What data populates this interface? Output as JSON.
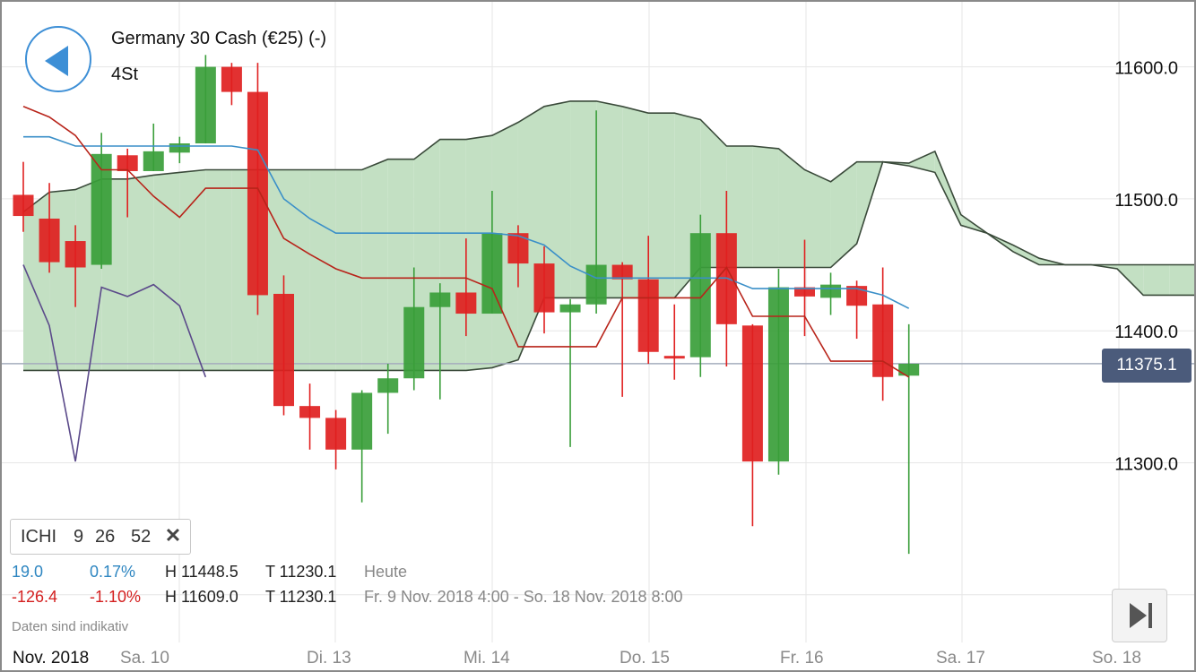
{
  "header": {
    "title": "Germany 30 Cash (€25) (-)",
    "timeframe": "4St"
  },
  "current_price": "11375.1",
  "indicator": {
    "name": "ICHI",
    "p1": "9",
    "p2": "26",
    "p3": "52",
    "close_icon": "close-icon"
  },
  "stats": {
    "today": {
      "change": "19.0",
      "change_pct": "0.17%",
      "high": "H 11448.5",
      "low": "T 11230.1",
      "label": "Heute"
    },
    "period": {
      "change": "-126.4",
      "change_pct": "-1.10%",
      "high": "H 11609.0",
      "low": "T 11230.1",
      "label": "Fr. 9 Nov. 2018 4:00 - So. 18 Nov. 2018 8:00"
    }
  },
  "disclaimer": "Daten sind indikativ",
  "colors": {
    "up": "#3a9e3a",
    "down": "#e02020",
    "tenkan": "#3a8fc8",
    "kijun": "#b8241a",
    "chikou": "#5b4a8a",
    "cloud_bull": "#c3e0c3",
    "cloud_bear": "#ecb9b9",
    "accent": "#3d8fd6"
  },
  "chart_data": {
    "type": "candlestick",
    "instrument": "Germany 30 Cash (€25) (-)",
    "interval": "4St",
    "y_ticks": [
      11300.0,
      11400.0,
      11500.0,
      11600.0
    ],
    "y_tick_labels": [
      "11300.0",
      "11400.0",
      "11500.0",
      "11600.0"
    ],
    "partially_hidden_tick": "11200.0",
    "ylim": [
      11187,
      11644
    ],
    "x_labels": [
      "Nov. 2018",
      "Sa. 10",
      "Di. 13",
      "Mi. 14",
      "Do. 15",
      "Fr. 16",
      "Sa. 17",
      "So. 18"
    ],
    "last_price": 11375.1,
    "candles": [
      {
        "open": 11503,
        "high": 11528,
        "low": 11475,
        "close": 11487
      },
      {
        "open": 11485,
        "high": 11512,
        "low": 11444,
        "close": 11452
      },
      {
        "open": 11468,
        "high": 11480,
        "low": 11418,
        "close": 11448
      },
      {
        "open": 11450,
        "high": 11550,
        "low": 11447,
        "close": 11534
      },
      {
        "open": 11533,
        "high": 11538,
        "low": 11486,
        "close": 11521
      },
      {
        "open": 11521,
        "high": 11557,
        "low": 11521,
        "close": 11536
      },
      {
        "open": 11535,
        "high": 11547,
        "low": 11527,
        "close": 11542
      },
      {
        "open": 11542,
        "high": 11609,
        "low": 11542,
        "close": 11600
      },
      {
        "open": 11600,
        "high": 11603,
        "low": 11571,
        "close": 11581
      },
      {
        "open": 11581,
        "high": 11603,
        "low": 11412,
        "close": 11427
      },
      {
        "open": 11428,
        "high": 11442,
        "low": 11336,
        "close": 11343
      },
      {
        "open": 11343,
        "high": 11360,
        "low": 11310,
        "close": 11334
      },
      {
        "open": 11334,
        "high": 11340,
        "low": 11295,
        "close": 11310
      },
      {
        "open": 11310,
        "high": 11355,
        "low": 11270,
        "close": 11353
      },
      {
        "open": 11353,
        "high": 11375,
        "low": 11322,
        "close": 11364
      },
      {
        "open": 11364,
        "high": 11448,
        "low": 11355,
        "close": 11418
      },
      {
        "open": 11418,
        "high": 11436,
        "low": 11348,
        "close": 11429
      },
      {
        "open": 11429,
        "high": 11470,
        "low": 11396,
        "close": 11413
      },
      {
        "open": 11413,
        "high": 11506,
        "low": 11413,
        "close": 11474
      },
      {
        "open": 11474,
        "high": 11480,
        "low": 11433,
        "close": 11451
      },
      {
        "open": 11451,
        "high": 11464,
        "low": 11398,
        "close": 11414
      },
      {
        "open": 11414,
        "high": 11424,
        "low": 11312,
        "close": 11420
      },
      {
        "open": 11420,
        "high": 11567,
        "low": 11413,
        "close": 11450
      },
      {
        "open": 11450,
        "high": 11452,
        "low": 11350,
        "close": 11439
      },
      {
        "open": 11439,
        "high": 11472,
        "low": 11375,
        "close": 11384
      },
      {
        "open": 11381,
        "high": 11420,
        "low": 11363,
        "close": 11379
      },
      {
        "open": 11380,
        "high": 11488,
        "low": 11365,
        "close": 11474
      },
      {
        "open": 11474,
        "high": 11506,
        "low": 11373,
        "close": 11405
      },
      {
        "open": 11404,
        "high": 11405,
        "low": 11252,
        "close": 11301
      },
      {
        "open": 11301,
        "high": 11447,
        "low": 11291,
        "close": 11433
      },
      {
        "open": 11433,
        "high": 11469,
        "low": 11396,
        "close": 11426
      },
      {
        "open": 11425,
        "high": 11444,
        "low": 11412,
        "close": 11435
      },
      {
        "open": 11434,
        "high": 11438,
        "low": 11394,
        "close": 11419
      },
      {
        "open": 11420,
        "high": 11448,
        "low": 11347,
        "close": 11365
      },
      {
        "open": 11366,
        "high": 11405,
        "low": 11231,
        "close": 11375
      }
    ],
    "tenkan_sen": [
      11547,
      11547,
      11540,
      11540,
      11540,
      11540,
      11540,
      11540,
      11540,
      11537,
      11500,
      11485,
      11474,
      11474,
      11474,
      11474,
      11474,
      11474,
      11474,
      11472,
      11465,
      11449,
      11440,
      11440,
      11440,
      11440,
      11440,
      11440,
      11432,
      11432,
      11432,
      11432,
      11432,
      11427,
      11417
    ],
    "kijun_sen": [
      11570,
      11562,
      11548,
      11522,
      11522,
      11502,
      11486,
      11508,
      11508,
      11508,
      11470,
      11458,
      11447,
      11440,
      11440,
      11440,
      11440,
      11440,
      11432,
      11388,
      11388,
      11388,
      11388,
      11425,
      11425,
      11425,
      11425,
      11448,
      11411,
      11411,
      11411,
      11377,
      11377,
      11377,
      11365
    ],
    "chikou_span": {
      "start_index": 0,
      "values": [
        11450,
        11404,
        11301,
        11433,
        11426,
        11435,
        11419,
        11365
      ]
    },
    "senkou_a": {
      "start_index": 0,
      "values": [
        11490,
        11505,
        11507,
        11515,
        11515,
        11518,
        11520,
        11522,
        11522,
        11522,
        11522,
        11522,
        11522,
        11522,
        11530,
        11530,
        11545,
        11545,
        11548,
        11558,
        11570,
        11574,
        11574,
        11570,
        11565,
        11565,
        11560,
        11540,
        11540,
        11538,
        11522,
        11513,
        11528,
        11528,
        11527,
        11536,
        11488,
        11474,
        11465,
        11455,
        11450,
        11450,
        11450,
        11450,
        11450,
        11450,
        11450,
        11450,
        11450
      ]
    },
    "senkou_b": {
      "start_index": 0,
      "values": [
        11370,
        11370,
        11370,
        11370,
        11370,
        11370,
        11370,
        11370,
        11370,
        11370,
        11370,
        11370,
        11370,
        11370,
        11370,
        11370,
        11370,
        11370,
        11372,
        11378,
        11425,
        11425,
        11425,
        11425,
        11425,
        11425,
        11448,
        11448,
        11448,
        11448,
        11448,
        11448,
        11466,
        11528,
        11525,
        11520,
        11480,
        11474,
        11460,
        11450,
        11450,
        11450,
        11447,
        11427,
        11427,
        11427,
        11427,
        11427,
        11427
      ]
    }
  }
}
